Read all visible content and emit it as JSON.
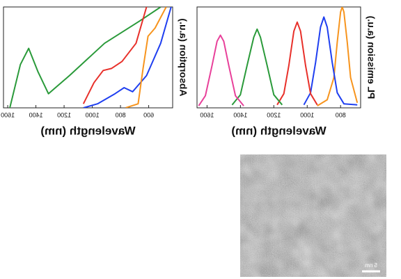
{
  "chart_data": [
    {
      "type": "line",
      "ylabel": "PL emission (a.u.)",
      "xlabel": "Wavelength (nm)",
      "xlim": [
        680,
        1660
      ],
      "xticks": [
        800,
        1000,
        1200,
        1400,
        1600
      ],
      "ylim": [
        0,
        1
      ],
      "series": [
        {
          "color": "#f7941d",
          "x": [
            700,
            740,
            760,
            780,
            790,
            800,
            820,
            840,
            880,
            940
          ],
          "values": [
            0.05,
            0.3,
            0.65,
            0.95,
            1.0,
            0.95,
            0.65,
            0.3,
            0.08,
            0.02
          ]
        },
        {
          "color": "#1f3ff0",
          "x": [
            700,
            780,
            820,
            850,
            880,
            900,
            920,
            950,
            980,
            1020
          ],
          "values": [
            0.03,
            0.04,
            0.15,
            0.45,
            0.8,
            0.9,
            0.8,
            0.45,
            0.15,
            0.03
          ]
        },
        {
          "color": "#e8302a",
          "x": [
            940,
            980,
            1010,
            1040,
            1060,
            1080,
            1110,
            1140,
            1180
          ],
          "values": [
            0.03,
            0.14,
            0.42,
            0.76,
            0.85,
            0.76,
            0.42,
            0.14,
            0.03
          ]
        },
        {
          "color": "#2a9a3a",
          "x": [
            1150,
            1200,
            1240,
            1280,
            1300,
            1320,
            1360,
            1400,
            1450
          ],
          "values": [
            0.03,
            0.13,
            0.42,
            0.7,
            0.78,
            0.7,
            0.42,
            0.13,
            0.03
          ]
        },
        {
          "color": "#e8409a",
          "x": [
            1380,
            1430,
            1470,
            1500,
            1520,
            1540,
            1570,
            1610,
            1650
          ],
          "values": [
            0.02,
            0.12,
            0.42,
            0.66,
            0.72,
            0.66,
            0.42,
            0.12,
            0.02
          ]
        }
      ]
    },
    {
      "type": "line",
      "ylabel": "Absorption (a.u.)",
      "xlabel": "Wavelength (nm)",
      "xlim": [
        430,
        1630
      ],
      "xticks": [
        600,
        800,
        1000,
        1200,
        1400,
        1600
      ],
      "ylim": [
        0,
        1
      ],
      "series": [
        {
          "color": "#2a9a3a",
          "x": [
            515,
            665,
            913,
            1162,
            1311,
            1386,
            1451,
            1510,
            1585
          ],
          "values": [
            1,
            0.86,
            0.64,
            0.32,
            0.14,
            0.36,
            0.59,
            0.43,
            0
          ]
        },
        {
          "color": "#e8302a",
          "x": [
            615,
            690,
            789,
            864,
            923,
            988,
            1063
          ],
          "values": [
            1,
            0.64,
            0.46,
            0.39,
            0.37,
            0.25,
            0.04
          ]
        },
        {
          "color": "#1f3ff0",
          "x": [
            441,
            515,
            615,
            714,
            774,
            839,
            963,
            1063
          ],
          "values": [
            1,
            0.64,
            0.32,
            0.16,
            0.2,
            0.14,
            0.04,
            0
          ]
        },
        {
          "color": "#f7941d",
          "x": [
            476,
            555,
            605,
            640,
            675,
            764
          ],
          "values": [
            1,
            0.79,
            0.71,
            0.39,
            0.04,
            0
          ]
        }
      ]
    }
  ],
  "image": {
    "scale_bar_label": "5 nm"
  }
}
